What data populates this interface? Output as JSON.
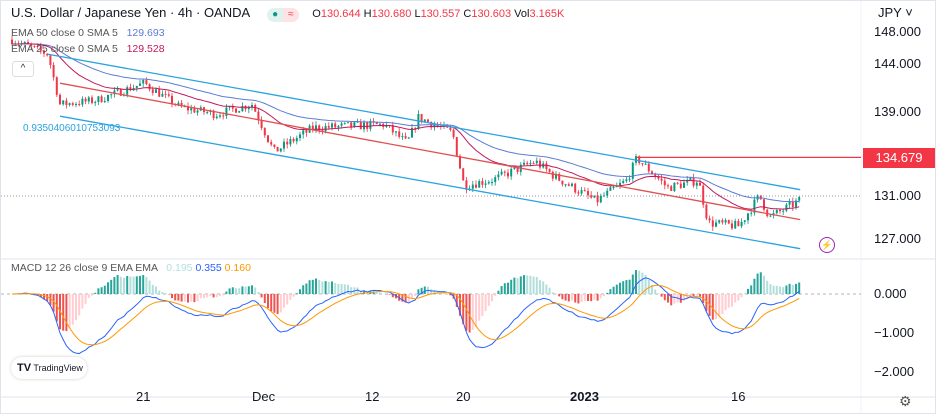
{
  "header": {
    "title": "U.S. Dollar / Japanese Yen · 4h · OANDA",
    "o_label": "O",
    "o": "130.644",
    "h_label": "H",
    "h": "130.680",
    "l_label": "L",
    "l": "130.557",
    "c_label": "C",
    "c": "130.603",
    "vol_label": "Vol",
    "vol": "3.165K",
    "status_icon": "market-open-dot",
    "mode_icon": "approx-icon"
  },
  "indicators": {
    "ema50_label": "EMA 50 close 0 SMA 5",
    "ema50_value": "129.693",
    "ema25_label": "EMA 25 close 0 SMA 5",
    "ema25_value": "129.528",
    "macd_label": "MACD 12 26 close 9 EMA EMA",
    "macd_hist": "0.195",
    "macd_line": "0.355",
    "macd_signal": "0.160",
    "fib_label": "0.9350406010753093"
  },
  "axis": {
    "currency": "JPY",
    "price_ticks": [
      "148.000",
      "144.000",
      "139.000",
      "131.000",
      "127.000"
    ],
    "price_tick_values": [
      148,
      144,
      139,
      131,
      127
    ],
    "macd_ticks": [
      "0.000",
      "−1.000",
      "−2.000"
    ],
    "macd_tick_values": [
      0,
      -1,
      -2
    ],
    "time_ticks": [
      "21",
      "Dec",
      "12",
      "20",
      "2023",
      "16"
    ],
    "time_tick_dates": [
      "2022-11-21",
      "2022-12-01",
      "2022-12-12",
      "2022-12-20",
      "2023-01-01",
      "2023-01-16"
    ]
  },
  "last_price_tag": "134.679",
  "logo": "TradingView",
  "colors": {
    "up": "#089981",
    "down": "#f23645",
    "ema50": "#5b7bd5",
    "ema25": "#c2185b",
    "channel": "#29a3e0",
    "channel_mid": "#e05050",
    "macd": "#2962ff",
    "signal": "#ff9800",
    "hist_up": "#26a69a",
    "hist_up_light": "#b2dfdb",
    "hist_down": "#ef5350",
    "hist_down_light": "#ffcdd2"
  },
  "chart_data": {
    "type": "candlestick",
    "symbol": "USDJPY",
    "interval": "4h",
    "approx_close_path": [
      {
        "date": "2022-11-10",
        "close": 146.5
      },
      {
        "date": "2022-11-13",
        "close": 145.0
      },
      {
        "date": "2022-11-14",
        "close": 139.8
      },
      {
        "date": "2022-11-17",
        "close": 140.2
      },
      {
        "date": "2022-11-21",
        "close": 142.0
      },
      {
        "date": "2022-11-24",
        "close": 139.5
      },
      {
        "date": "2022-11-27",
        "close": 138.8
      },
      {
        "date": "2022-11-30",
        "close": 139.8
      },
      {
        "date": "2022-12-02",
        "close": 135.2
      },
      {
        "date": "2022-12-06",
        "close": 137.5
      },
      {
        "date": "2022-12-13",
        "close": 137.8
      },
      {
        "date": "2022-12-15",
        "close": 136.0
      },
      {
        "date": "2022-12-16",
        "close": 138.5
      },
      {
        "date": "2022-12-19",
        "close": 137.0
      },
      {
        "date": "2022-12-20",
        "close": 132.0
      },
      {
        "date": "2022-12-23",
        "close": 132.6
      },
      {
        "date": "2022-12-27",
        "close": 134.3
      },
      {
        "date": "2022-12-29",
        "close": 132.8
      },
      {
        "date": "2023-01-02",
        "close": 130.5
      },
      {
        "date": "2023-01-05",
        "close": 132.5
      },
      {
        "date": "2023-01-06",
        "close": 134.6
      },
      {
        "date": "2023-01-09",
        "close": 131.8
      },
      {
        "date": "2023-01-12",
        "close": 132.5
      },
      {
        "date": "2023-01-13",
        "close": 128.5
      },
      {
        "date": "2023-01-16",
        "close": 128.2
      },
      {
        "date": "2023-01-18",
        "close": 131.0
      },
      {
        "date": "2023-01-19",
        "close": 129.0
      },
      {
        "date": "2023-01-22",
        "close": 130.6
      }
    ],
    "channel": {
      "upper": [
        {
          "date": "2022-11-13",
          "price": 145.0
        },
        {
          "date": "2023-01-22",
          "price": 131.6
        }
      ],
      "middle": [
        {
          "date": "2022-11-14",
          "price": 142.0
        },
        {
          "date": "2023-01-22",
          "price": 128.8
        }
      ],
      "lower": [
        {
          "date": "2022-11-14",
          "price": 138.6
        },
        {
          "date": "2023-01-22",
          "price": 126.1
        }
      ]
    },
    "horizontal_line": {
      "price": 134.679,
      "from": "2023-01-06"
    },
    "ylim": [
      125.5,
      148
    ],
    "macd_ylim": [
      -2.2,
      1.0
    ],
    "grid": false
  }
}
